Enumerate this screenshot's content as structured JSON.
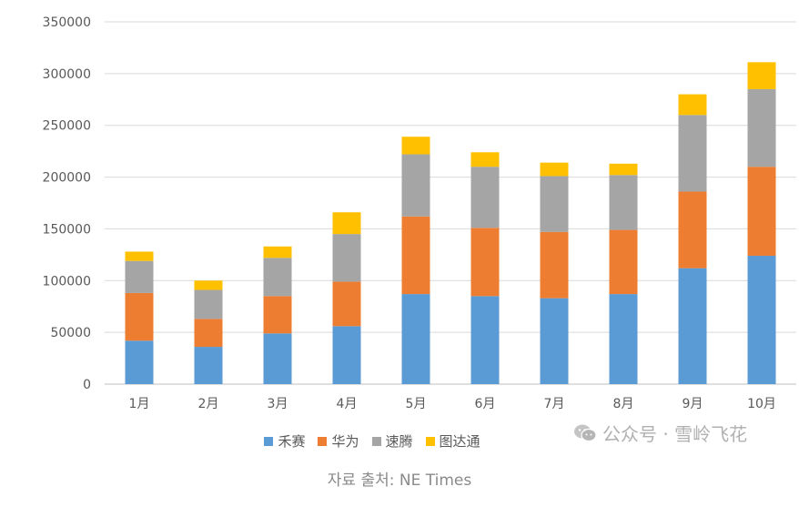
{
  "chart_data": {
    "type": "bar",
    "stacked": true,
    "categories": [
      "1月",
      "2月",
      "3月",
      "4月",
      "5月",
      "6月",
      "7月",
      "8月",
      "9月",
      "10月"
    ],
    "series": [
      {
        "name": "禾赛",
        "color": "#5b9bd5",
        "values": [
          42000,
          36000,
          49000,
          56000,
          87000,
          85000,
          83000,
          87000,
          112000,
          124000
        ]
      },
      {
        "name": "华为",
        "color": "#ed7d31",
        "values": [
          46000,
          27000,
          36000,
          43000,
          75000,
          66000,
          64000,
          62000,
          74000,
          86000
        ]
      },
      {
        "name": "速腾",
        "color": "#a5a5a5",
        "values": [
          31000,
          28000,
          37000,
          46000,
          60000,
          59000,
          54000,
          53000,
          74000,
          75000
        ]
      },
      {
        "name": "图达通",
        "color": "#ffc000",
        "values": [
          9000,
          9000,
          11000,
          21000,
          17000,
          14000,
          13000,
          11000,
          20000,
          26000
        ]
      }
    ],
    "ylim": [
      0,
      350000
    ],
    "yticks": [
      0,
      50000,
      100000,
      150000,
      200000,
      250000,
      300000,
      350000
    ],
    "grid": true,
    "legend_position": "bottom"
  },
  "watermark": {
    "icon": "wechat-icon",
    "text": "公众号 · 雪岭飞花"
  },
  "source_text": "자료 출처: NE Times"
}
